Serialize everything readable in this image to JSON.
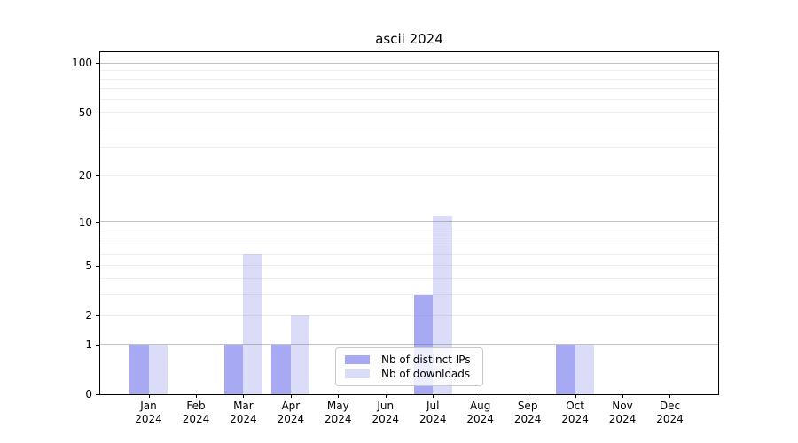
{
  "title": "ascii 2024",
  "chart_data": {
    "type": "bar",
    "title": "ascii 2024",
    "xlabel": "",
    "ylabel": "",
    "categories": [
      "Jan 2024",
      "Feb 2024",
      "Mar 2024",
      "Apr 2024",
      "May 2024",
      "Jun 2024",
      "Jul 2024",
      "Aug 2024",
      "Sep 2024",
      "Oct 2024",
      "Nov 2024",
      "Dec 2024"
    ],
    "series": [
      {
        "name": "Nb of distinct IPs",
        "color": "#a7aaf2",
        "values": [
          1,
          0,
          1,
          1,
          0,
          0,
          3,
          0,
          0,
          1,
          0,
          0
        ]
      },
      {
        "name": "Nb of downloads",
        "color": "#dbdcf8",
        "values": [
          1,
          0,
          6,
          2,
          0,
          0,
          11,
          0,
          0,
          1,
          0,
          0
        ]
      }
    ],
    "y_axis": {
      "scale": "log1p",
      "tick_labels": [
        0,
        1,
        2,
        5,
        10,
        20,
        50,
        100
      ],
      "major_gridlines": [
        1,
        10,
        100
      ],
      "minor_gridlines": [
        2,
        3,
        4,
        5,
        6,
        7,
        8,
        9,
        20,
        30,
        40,
        50,
        60,
        70,
        80,
        90
      ],
      "range": [
        0,
        116
      ]
    },
    "legend": {
      "position": "lower center"
    },
    "grid": true,
    "colors": {
      "axis": "#000000",
      "text": "#000000",
      "background": "#ffffff"
    }
  }
}
